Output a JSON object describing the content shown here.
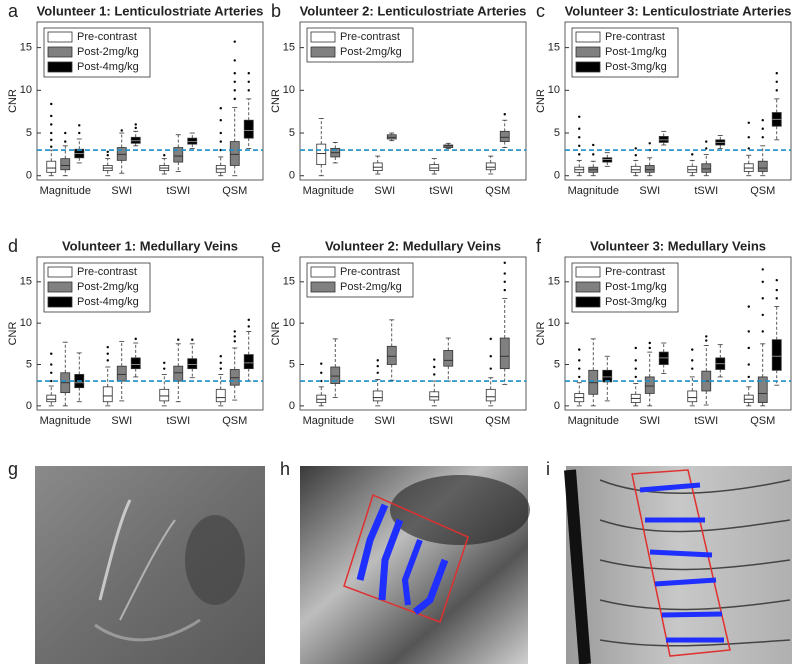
{
  "chart_data": [
    {
      "type": "box",
      "panel": "a",
      "title": "Volunteer 1: Lenticulostriate Arteries",
      "ylabel": "CNR",
      "categories": [
        "Magnitude",
        "SWI",
        "tSWI",
        "QSM"
      ],
      "ylim": [
        -0.5,
        18
      ],
      "yticks": [
        0,
        5,
        10,
        15
      ],
      "threshold": 3,
      "legend": "upper-left",
      "series": [
        {
          "name": "Pre-contrast",
          "color": "#ffffff",
          "boxes": [
            {
              "low": 0,
              "q1": 0.4,
              "median": 0.9,
              "q3": 1.7,
              "high": 3.0,
              "outliers": [
                3.4,
                4.2,
                5.0,
                6.0,
                7.0,
                8.4
              ]
            },
            {
              "low": 0,
              "q1": 0.6,
              "median": 0.9,
              "q3": 1.2,
              "high": 2.0,
              "outliers": [
                2.4,
                2.8
              ]
            },
            {
              "low": 0.2,
              "q1": 0.6,
              "median": 0.9,
              "q3": 1.2,
              "high": 2.0,
              "outliers": [
                2.4
              ]
            },
            {
              "low": 0,
              "q1": 0.4,
              "median": 0.8,
              "q3": 1.2,
              "high": 2.2,
              "outliers": [
                3.0,
                4.0,
                5.0,
                6.5,
                7.9
              ]
            }
          ]
        },
        {
          "name": "Post-2mg/kg",
          "color": "#808080",
          "boxes": [
            {
              "low": 0,
              "q1": 0.7,
              "median": 1.2,
              "q3": 2.0,
              "high": 3.5,
              "outliers": [
                4.0,
                5.0
              ]
            },
            {
              "low": 0.3,
              "q1": 1.8,
              "median": 2.5,
              "q3": 3.3,
              "high": 5.0,
              "outliers": [
                5.3
              ]
            },
            {
              "low": 0.5,
              "q1": 1.6,
              "median": 2.3,
              "q3": 3.3,
              "high": 4.8,
              "outliers": []
            },
            {
              "low": 0,
              "q1": 1.2,
              "median": 2.5,
              "q3": 4.0,
              "high": 8.0,
              "outliers": [
                9.0,
                10.0,
                11.0,
                12.0,
                13.5,
                15.7
              ]
            }
          ]
        },
        {
          "name": "Post-4mg/kg",
          "color": "#000000",
          "boxes": [
            {
              "low": 1.5,
              "q1": 2.1,
              "median": 2.6,
              "q3": 3.1,
              "high": 4.3,
              "outliers": [
                5.0,
                5.9
              ]
            },
            {
              "low": 3.5,
              "q1": 3.8,
              "median": 4.1,
              "q3": 4.5,
              "high": 5.2,
              "outliers": [
                5.6,
                6.0
              ]
            },
            {
              "low": 3.2,
              "q1": 3.7,
              "median": 4.0,
              "q3": 4.4,
              "high": 5.0,
              "outliers": []
            },
            {
              "low": 3.2,
              "q1": 4.4,
              "median": 5.3,
              "q3": 6.5,
              "high": 9.0,
              "outliers": [
                10.0,
                11.0,
                12.0
              ]
            }
          ]
        }
      ]
    },
    {
      "type": "box",
      "panel": "b",
      "title": "Volunteer 2: Lenticulostriate Arteries",
      "ylabel": "CNR",
      "categories": [
        "Magnitude",
        "SWI",
        "tSWI",
        "QSM"
      ],
      "ylim": [
        -0.5,
        18
      ],
      "yticks": [
        0,
        5,
        10,
        15
      ],
      "threshold": 3,
      "legend": "upper-left",
      "series": [
        {
          "name": "Pre-contrast",
          "color": "#ffffff",
          "boxes": [
            {
              "low": 0,
              "q1": 1.3,
              "median": 2.6,
              "q3": 3.7,
              "high": 6.7,
              "outliers": []
            },
            {
              "low": 0.2,
              "q1": 0.6,
              "median": 1.0,
              "q3": 1.5,
              "high": 2.3,
              "outliers": []
            },
            {
              "low": 0.2,
              "q1": 0.6,
              "median": 0.9,
              "q3": 1.3,
              "high": 2.0,
              "outliers": []
            },
            {
              "low": 0.2,
              "q1": 0.7,
              "median": 1.0,
              "q3": 1.5,
              "high": 2.3,
              "outliers": []
            }
          ]
        },
        {
          "name": "Post-2mg/kg",
          "color": "#808080",
          "boxes": [
            {
              "low": 1.5,
              "q1": 2.2,
              "median": 2.7,
              "q3": 3.2,
              "high": 3.9,
              "outliers": []
            },
            {
              "low": 4.1,
              "q1": 4.3,
              "median": 4.5,
              "q3": 4.8,
              "high": 5.0,
              "outliers": []
            },
            {
              "low": 3.2,
              "q1": 3.3,
              "median": 3.5,
              "q3": 3.6,
              "high": 3.8,
              "outliers": []
            },
            {
              "low": 3.3,
              "q1": 4.0,
              "median": 4.5,
              "q3": 5.2,
              "high": 6.5,
              "outliers": [
                7.2
              ]
            }
          ]
        }
      ]
    },
    {
      "type": "box",
      "panel": "c",
      "title": "Volunteer 3: Lenticulostriate Arteries",
      "ylabel": "CNR",
      "categories": [
        "Magnitude",
        "SWI",
        "tSWI",
        "QSM"
      ],
      "ylim": [
        -0.5,
        18
      ],
      "yticks": [
        0,
        5,
        10,
        15
      ],
      "threshold": 3,
      "legend": "upper-left",
      "series": [
        {
          "name": "Pre-contrast",
          "color": "#ffffff",
          "boxes": [
            {
              "low": 0,
              "q1": 0.4,
              "median": 0.7,
              "q3": 1.0,
              "high": 1.8,
              "outliers": [
                2.5,
                3.5,
                4.5,
                5.5,
                6.9
              ]
            },
            {
              "low": 0,
              "q1": 0.4,
              "median": 0.7,
              "q3": 1.1,
              "high": 1.8,
              "outliers": [
                2.4,
                3.2
              ]
            },
            {
              "low": 0,
              "q1": 0.4,
              "median": 0.7,
              "q3": 1.1,
              "high": 1.8,
              "outliers": [
                2.5
              ]
            },
            {
              "low": 0,
              "q1": 0.5,
              "median": 0.9,
              "q3": 1.4,
              "high": 2.4,
              "outliers": [
                3.2,
                4.5,
                6.2
              ]
            }
          ]
        },
        {
          "name": "Post-1mg/kg",
          "color": "#808080",
          "boxes": [
            {
              "low": 0,
              "q1": 0.4,
              "median": 0.7,
              "q3": 1.0,
              "high": 1.7,
              "outliers": [
                2.5,
                3.6
              ]
            },
            {
              "low": 0,
              "q1": 0.4,
              "median": 0.7,
              "q3": 1.2,
              "high": 2.1,
              "outliers": [
                3.0,
                3.8
              ]
            },
            {
              "low": 0,
              "q1": 0.4,
              "median": 0.8,
              "q3": 1.4,
              "high": 2.5,
              "outliers": [
                3.2,
                4.0
              ]
            },
            {
              "low": 0,
              "q1": 0.5,
              "median": 0.9,
              "q3": 1.7,
              "high": 3.5,
              "outliers": [
                4.5,
                5.5,
                6.5
              ]
            }
          ]
        },
        {
          "name": "Post-3mg/kg",
          "color": "#000000",
          "boxes": [
            {
              "low": 1.1,
              "q1": 1.6,
              "median": 1.9,
              "q3": 2.1,
              "high": 2.7,
              "outliers": []
            },
            {
              "low": 3.6,
              "q1": 3.9,
              "median": 4.2,
              "q3": 4.6,
              "high": 5.2,
              "outliers": []
            },
            {
              "low": 3.2,
              "q1": 3.6,
              "median": 3.9,
              "q3": 4.2,
              "high": 4.7,
              "outliers": []
            },
            {
              "low": 4.2,
              "q1": 5.8,
              "median": 6.6,
              "q3": 7.4,
              "high": 9.0,
              "outliers": [
                10.0,
                11.0,
                12.0
              ]
            }
          ]
        }
      ]
    },
    {
      "type": "box",
      "panel": "d",
      "title": "Volunteer 1: Medullary Veins",
      "ylabel": "CNR",
      "categories": [
        "Magnitude",
        "SWI",
        "tSWI",
        "QSM"
      ],
      "ylim": [
        -0.5,
        18
      ],
      "yticks": [
        0,
        5,
        10,
        15
      ],
      "threshold": 3,
      "legend": "upper-left",
      "series": [
        {
          "name": "Pre-contrast",
          "color": "#ffffff",
          "boxes": [
            {
              "low": 0,
              "q1": 0.5,
              "median": 0.8,
              "q3": 1.3,
              "high": 2.4,
              "outliers": [
                3.0,
                4.0,
                5.0,
                6.3
              ]
            },
            {
              "low": 0,
              "q1": 0.5,
              "median": 1.2,
              "q3": 2.3,
              "high": 4.7,
              "outliers": [
                5.5,
                6.3,
                7.1
              ]
            },
            {
              "low": 0,
              "q1": 0.6,
              "median": 1.2,
              "q3": 2.0,
              "high": 3.8,
              "outliers": [
                4.5,
                5.2
              ]
            },
            {
              "low": 0,
              "q1": 0.5,
              "median": 1.0,
              "q3": 2.0,
              "high": 3.8,
              "outliers": [
                4.5,
                5.2,
                6.0
              ]
            }
          ]
        },
        {
          "name": "Post-2mg/kg",
          "color": "#808080",
          "boxes": [
            {
              "low": 0,
              "q1": 1.6,
              "median": 2.8,
              "q3": 4.0,
              "high": 7.7,
              "outliers": []
            },
            {
              "low": 0.6,
              "q1": 3.0,
              "median": 3.8,
              "q3": 4.8,
              "high": 7.8,
              "outliers": []
            },
            {
              "low": 0.5,
              "q1": 3.0,
              "median": 4.0,
              "q3": 4.8,
              "high": 7.5,
              "outliers": [
                8.0
              ]
            },
            {
              "low": 0.7,
              "q1": 2.5,
              "median": 3.4,
              "q3": 4.4,
              "high": 7.0,
              "outliers": [
                7.8,
                8.4,
                9.0
              ]
            }
          ]
        },
        {
          "name": "Post-4mg/kg",
          "color": "#000000",
          "boxes": [
            {
              "low": 0.5,
              "q1": 2.2,
              "median": 2.8,
              "q3": 3.8,
              "high": 6.4,
              "outliers": []
            },
            {
              "low": 3.5,
              "q1": 4.5,
              "median": 5.0,
              "q3": 5.8,
              "high": 7.6,
              "outliers": [
                8.1
              ]
            },
            {
              "low": 3.4,
              "q1": 4.5,
              "median": 5.0,
              "q3": 5.7,
              "high": 7.5,
              "outliers": [
                8.0
              ]
            },
            {
              "low": 3.0,
              "q1": 4.5,
              "median": 5.2,
              "q3": 6.2,
              "high": 9.0,
              "outliers": [
                9.6,
                10.4
              ]
            }
          ]
        }
      ]
    },
    {
      "type": "box",
      "panel": "e",
      "title": "Volunteer 2: Medullary Veins",
      "ylabel": "CNR",
      "categories": [
        "Magnitude",
        "SWI",
        "tSWI",
        "QSM"
      ],
      "ylim": [
        -0.5,
        18
      ],
      "yticks": [
        0,
        5,
        10,
        15
      ],
      "threshold": 3,
      "legend": "upper-left",
      "series": [
        {
          "name": "Pre-contrast",
          "color": "#ffffff",
          "boxes": [
            {
              "low": 0,
              "q1": 0.4,
              "median": 0.8,
              "q3": 1.3,
              "high": 2.3,
              "outliers": [
                3.0,
                4.0,
                5.1
              ]
            },
            {
              "low": 0,
              "q1": 0.6,
              "median": 1.0,
              "q3": 1.8,
              "high": 3.2,
              "outliers": [
                4.0,
                4.8,
                5.5
              ]
            },
            {
              "low": 0,
              "q1": 0.7,
              "median": 1.1,
              "q3": 1.7,
              "high": 3.0,
              "outliers": [
                3.8,
                4.7,
                5.6
              ]
            },
            {
              "low": 0,
              "q1": 0.6,
              "median": 1.1,
              "q3": 2.0,
              "high": 3.4,
              "outliers": [
                4.5,
                6.0,
                8.1
              ]
            }
          ]
        },
        {
          "name": "Post-2mg/kg",
          "color": "#808080",
          "boxes": [
            {
              "low": 1.0,
              "q1": 2.7,
              "median": 3.6,
              "q3": 4.7,
              "high": 8.1,
              "outliers": []
            },
            {
              "low": 3.1,
              "q1": 5.0,
              "median": 6.0,
              "q3": 7.2,
              "high": 10.4,
              "outliers": []
            },
            {
              "low": 3.0,
              "q1": 4.8,
              "median": 5.5,
              "q3": 6.7,
              "high": 8.2,
              "outliers": []
            },
            {
              "low": 2.6,
              "q1": 4.5,
              "median": 6.0,
              "q3": 8.2,
              "high": 13.0,
              "outliers": [
                14.0,
                15.0,
                16.0,
                17.3
              ]
            }
          ]
        }
      ]
    },
    {
      "type": "box",
      "panel": "f",
      "title": "Volunteer 3: Medullary Veins",
      "ylabel": "CNR",
      "categories": [
        "Magnitude",
        "SWI",
        "tSWI",
        "QSM"
      ],
      "ylim": [
        -0.5,
        18
      ],
      "yticks": [
        0,
        5,
        10,
        15
      ],
      "threshold": 3,
      "legend": "upper-left",
      "series": [
        {
          "name": "Pre-contrast",
          "color": "#ffffff",
          "boxes": [
            {
              "low": 0,
              "q1": 0.5,
              "median": 1.0,
              "q3": 1.5,
              "high": 2.8,
              "outliers": [
                3.5,
                4.5,
                5.5,
                6.8
              ]
            },
            {
              "low": 0,
              "q1": 0.4,
              "median": 0.9,
              "q3": 1.4,
              "high": 2.7,
              "outliers": [
                3.5,
                4.5,
                5.5,
                7.0
              ]
            },
            {
              "low": 0,
              "q1": 0.5,
              "median": 1.0,
              "q3": 1.8,
              "high": 3.5,
              "outliers": [
                4.5,
                5.5,
                6.8
              ]
            },
            {
              "low": 0,
              "q1": 0.4,
              "median": 0.8,
              "q3": 1.3,
              "high": 2.3,
              "outliers": [
                3.5,
                5.0,
                7.0,
                9.0,
                12.0
              ]
            }
          ]
        },
        {
          "name": "Post-1mg/kg",
          "color": "#808080",
          "boxes": [
            {
              "low": 0,
              "q1": 1.4,
              "median": 2.8,
              "q3": 4.3,
              "high": 8.1,
              "outliers": []
            },
            {
              "low": 0,
              "q1": 1.5,
              "median": 2.4,
              "q3": 3.5,
              "high": 6.5,
              "outliers": [
                7.0,
                7.6
              ]
            },
            {
              "low": 0.1,
              "q1": 1.8,
              "median": 3.0,
              "q3": 4.2,
              "high": 7.3,
              "outliers": [
                7.9,
                8.4
              ]
            },
            {
              "low": 0,
              "q1": 0.4,
              "median": 1.5,
              "q3": 3.5,
              "high": 7.5,
              "outliers": [
                9.0,
                11.0,
                13.0,
                15.0,
                16.5
              ]
            }
          ]
        },
        {
          "name": "Post-3mg/kg",
          "color": "#000000",
          "boxes": [
            {
              "low": 0.6,
              "q1": 2.9,
              "median": 3.5,
              "q3": 4.3,
              "high": 6.0,
              "outliers": []
            },
            {
              "low": 3.9,
              "q1": 5.0,
              "median": 5.8,
              "q3": 6.5,
              "high": 7.6,
              "outliers": []
            },
            {
              "low": 3.5,
              "q1": 4.4,
              "median": 5.1,
              "q3": 5.8,
              "high": 7.4,
              "outliers": []
            },
            {
              "low": 2.5,
              "q1": 4.3,
              "median": 6.0,
              "q3": 8.0,
              "high": 12.0,
              "outliers": [
                13.0,
                14.0,
                15.2
              ]
            }
          ]
        }
      ]
    }
  ],
  "images": [
    {
      "label": "g"
    },
    {
      "label": "h"
    },
    {
      "label": "i"
    }
  ]
}
